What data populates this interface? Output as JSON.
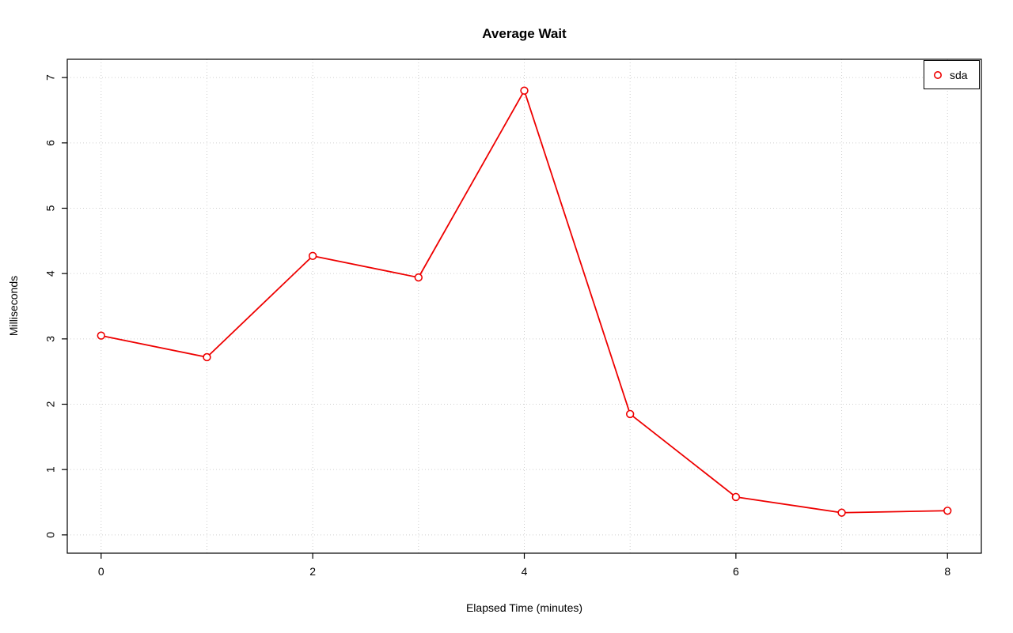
{
  "title": "Average Wait",
  "chart_data": {
    "type": "line",
    "title": "Average Wait",
    "xlabel": "Elapsed Time (minutes)",
    "ylabel": "Milliseconds",
    "x": [
      0,
      1,
      2,
      3,
      4,
      5,
      6,
      7,
      8
    ],
    "series": [
      {
        "name": "sda",
        "values": [
          3.05,
          2.72,
          4.27,
          3.94,
          6.8,
          1.85,
          0.58,
          0.34,
          0.37
        ],
        "color": "#ee0000",
        "marker": "open-circle"
      }
    ],
    "xlim": [
      0,
      8
    ],
    "ylim": [
      0,
      7
    ],
    "x_ticks": [
      0,
      2,
      4,
      6,
      8
    ],
    "y_ticks": [
      0,
      1,
      2,
      3,
      4,
      5,
      6,
      7
    ],
    "x_grid": [
      0,
      1,
      2,
      3,
      4,
      5,
      6,
      7,
      8
    ],
    "y_grid": [
      0,
      1,
      2,
      3,
      4,
      5,
      6,
      7
    ],
    "grid": true,
    "grid_color": "#cfcfcf",
    "axis_color": "#000000",
    "background": "#ffffff",
    "legend": {
      "position": "top-right",
      "entries": [
        "sda"
      ]
    }
  }
}
